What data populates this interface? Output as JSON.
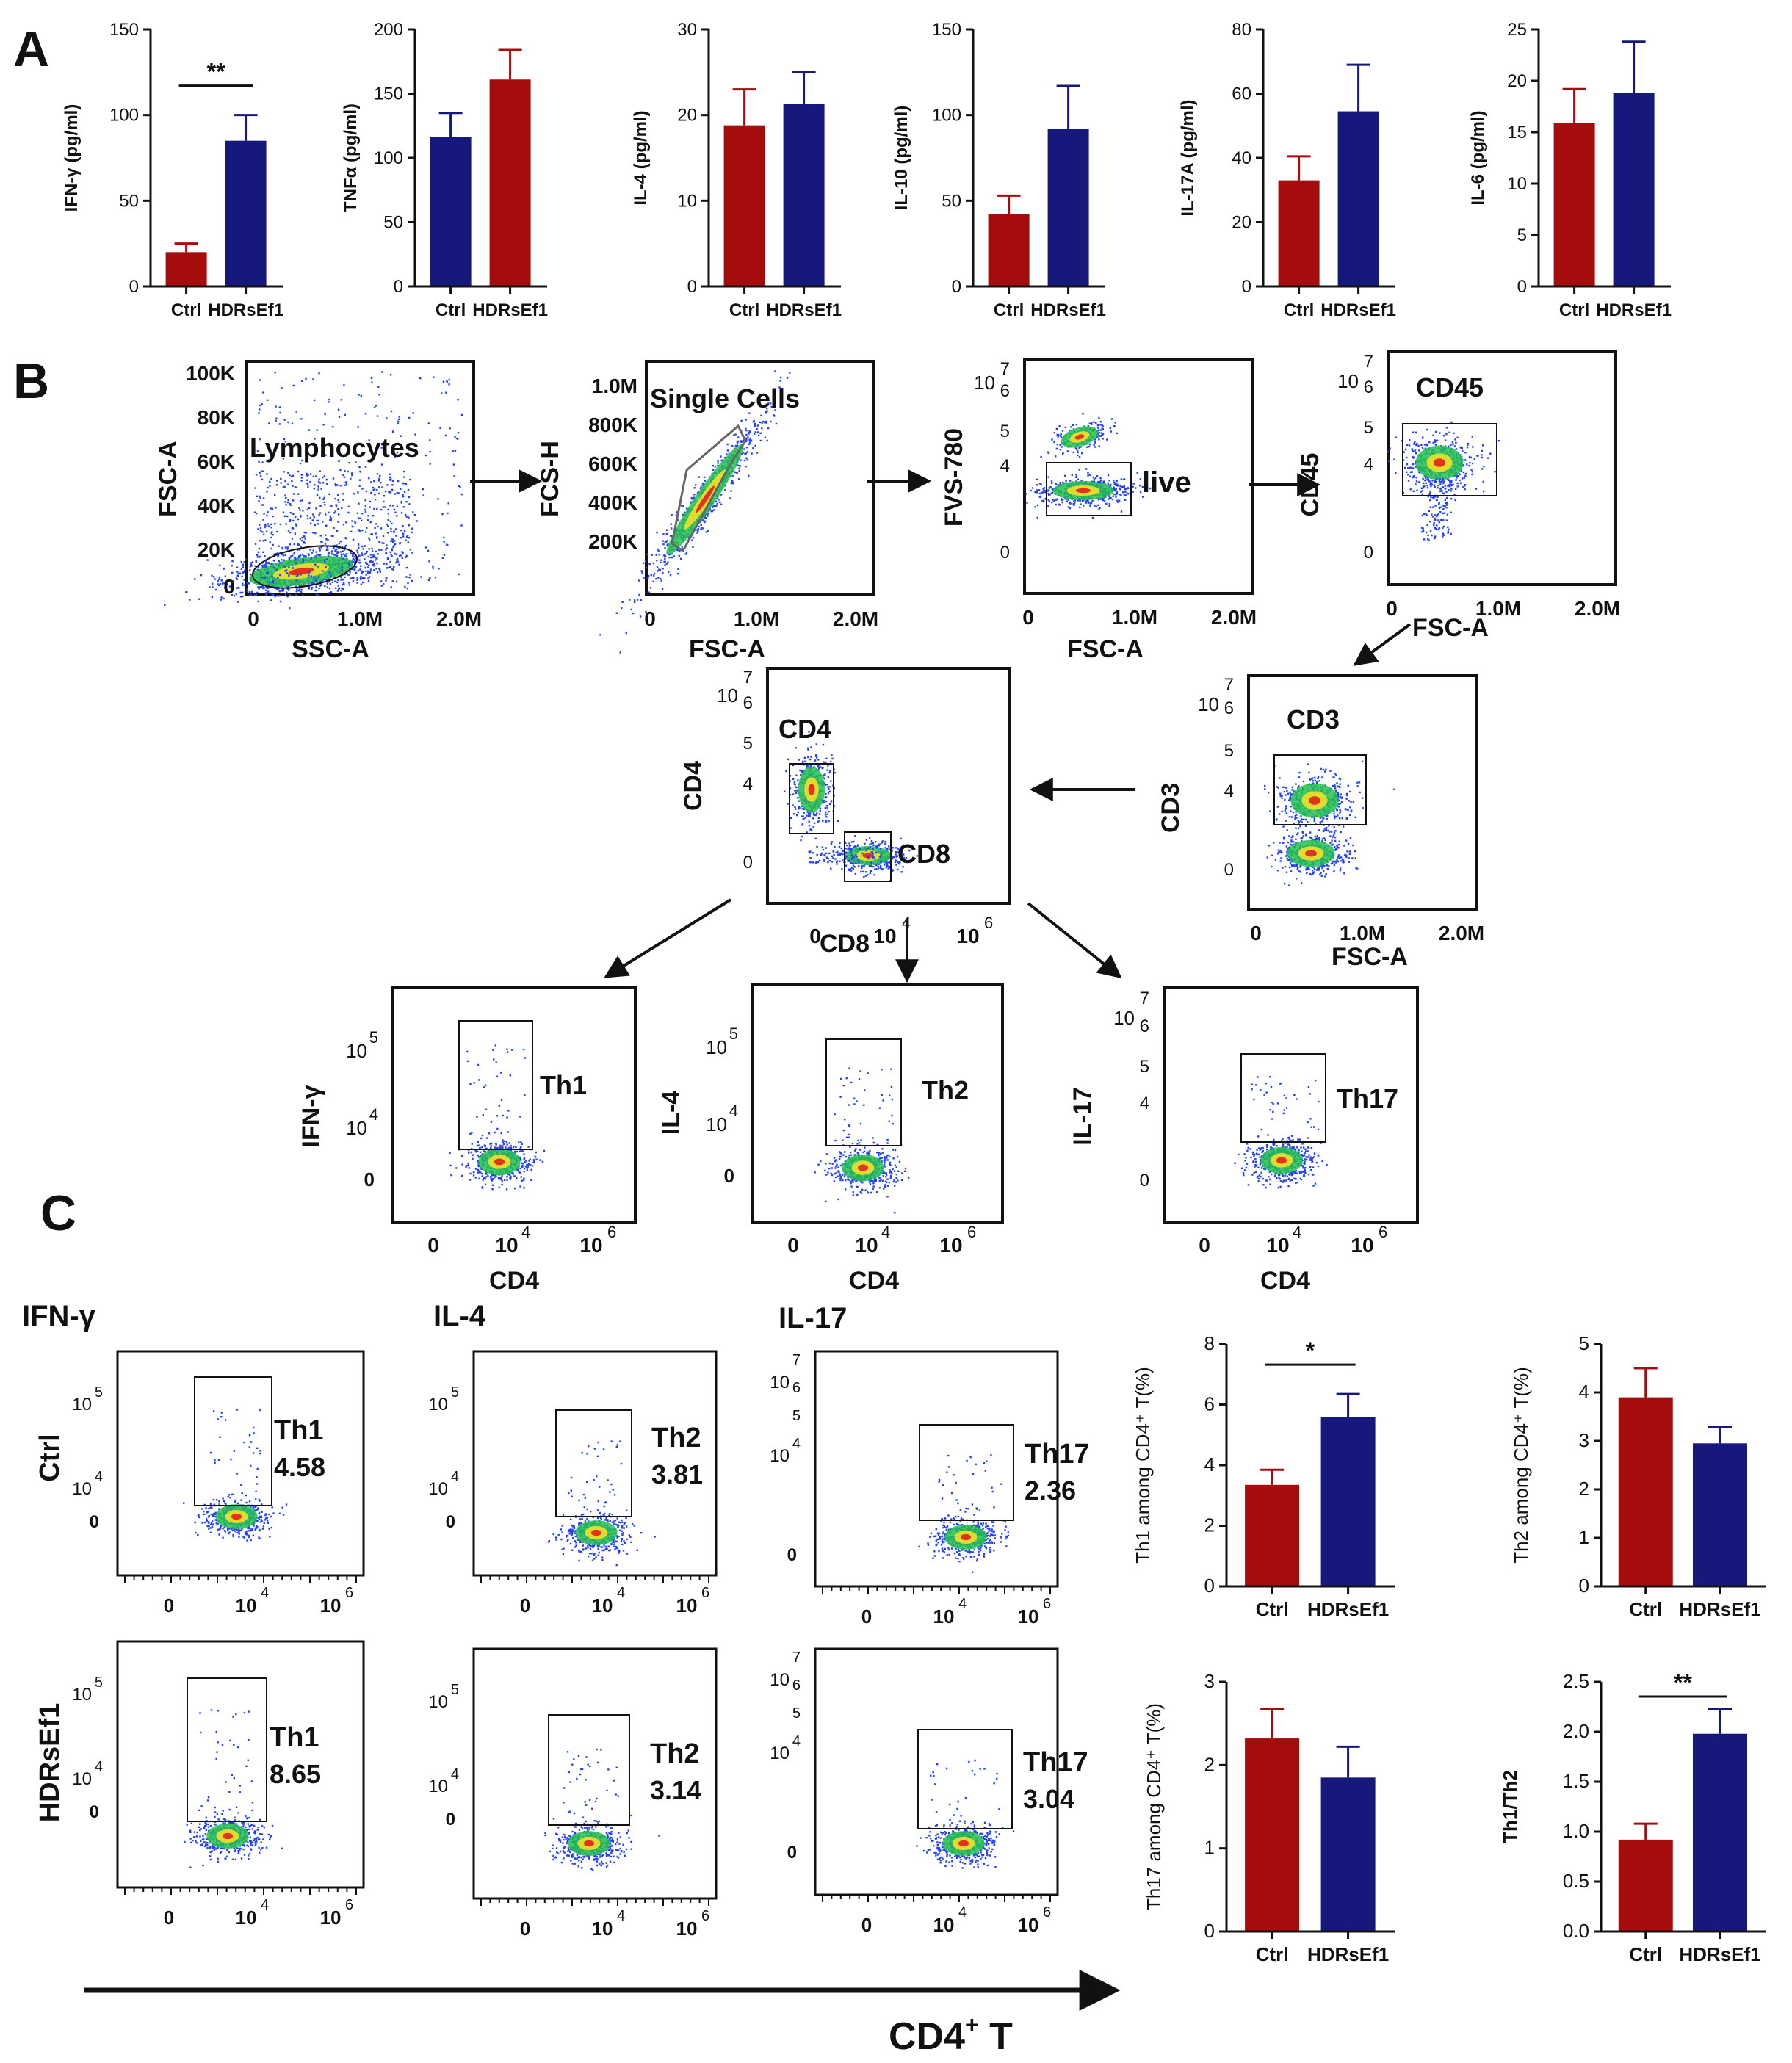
{
  "figure": {
    "panel_labels": [
      "A",
      "B",
      "C"
    ],
    "colors": {
      "ctrl": "#a50d0d",
      "treat": "#17187c",
      "axis": "#111111"
    },
    "c_column_headers": [
      "IFN-γ",
      "IL-4",
      "IL-17"
    ],
    "c_row_labels": [
      "Ctrl",
      "HDRsEf1"
    ],
    "big_axis_label": "CD4",
    "big_axis_sup": "+",
    "big_axis_suffix": " T"
  },
  "gating": {
    "plots": [
      {
        "id": "lymph",
        "xlabel": "SSC-A",
        "ylabel": "FSC-A",
        "gate_label": "Lymphocytes",
        "xticks": [
          "0",
          "1.0M",
          "2.0M"
        ],
        "yticks": [
          "100K",
          "80K",
          "60K",
          "40K",
          "20K",
          "0"
        ]
      },
      {
        "id": "single",
        "xlabel": "FSC-A",
        "ylabel": "FCS-H",
        "gate_label": "Single Cells",
        "xticks": [
          "0",
          "1.0M",
          "2.0M"
        ],
        "yticks": [
          "1.0M",
          "800K",
          "600K",
          "400K",
          "200K"
        ]
      },
      {
        "id": "live",
        "xlabel": "FSC-A",
        "ylabel": "FVS-780",
        "gate_label": "live",
        "xticks": [
          "0",
          "1.0M",
          "2.0M"
        ],
        "yticks": [
          "10",
          "7",
          "6",
          "5",
          "4",
          "0"
        ]
      },
      {
        "id": "cd45",
        "xlabel": "FSC-A",
        "ylabel": "CD45",
        "gate_label": "CD45",
        "xticks": [
          "0",
          "1.0M",
          "2.0M"
        ],
        "yticks": [
          "10",
          "7",
          "6",
          "5",
          "4",
          "0"
        ]
      },
      {
        "id": "cd3",
        "xlabel": "FSC-A",
        "ylabel": "CD3",
        "gate_label": "CD3",
        "xticks": [
          "0",
          "1.0M",
          "2.0M"
        ],
        "yticks": [
          "10",
          "7",
          "6",
          "5",
          "4",
          "0"
        ]
      },
      {
        "id": "cd4",
        "xlabel": "CD8",
        "ylabel": "CD4",
        "gate_label": "CD4",
        "gate_label2": "CD8",
        "xticks": [
          "0",
          "10",
          "4",
          "10",
          "6"
        ],
        "yticks": [
          "10",
          "7",
          "6",
          "5",
          "4",
          "0"
        ]
      },
      {
        "id": "th1",
        "xlabel": "CD4",
        "ylabel": "IFN-γ",
        "gate_label": "Th1",
        "xticks": [
          "0",
          "10",
          "4",
          "10",
          "6"
        ],
        "yticks": [
          "10",
          "5",
          "4",
          "0"
        ]
      },
      {
        "id": "th2",
        "xlabel": "CD4",
        "ylabel": "IL-4",
        "gate_label": "Th2",
        "xticks": [
          "0",
          "10",
          "4",
          "10",
          "6"
        ],
        "yticks": [
          "10",
          "5",
          "4",
          "0"
        ]
      },
      {
        "id": "th17",
        "xlabel": "CD4",
        "ylabel": "IL-17",
        "gate_label": "Th17",
        "xticks": [
          "0",
          "10",
          "4",
          "10",
          "6"
        ],
        "yticks": [
          "10",
          "7",
          "6",
          "5",
          "4",
          "0"
        ]
      }
    ]
  },
  "c_flow": {
    "plots": [
      {
        "id": "ctrl-th1",
        "label": "Th1",
        "value": "4.58"
      },
      {
        "id": "ctrl-th2",
        "label": "Th2",
        "value": "3.81"
      },
      {
        "id": "ctrl-th17",
        "label": "Th17",
        "value": "2.36"
      },
      {
        "id": "hdr-th1",
        "label": "Th1",
        "value": "8.65"
      },
      {
        "id": "hdr-th2",
        "label": "Th2",
        "value": "3.14"
      },
      {
        "id": "hdr-th17",
        "label": "Th17",
        "value": "3.04"
      }
    ]
  },
  "chart_data": [
    {
      "type": "bar",
      "panel": "A",
      "ylabel": "IFN-γ (pg/ml)",
      "categories": [
        "Ctrl",
        "HDRsEf1"
      ],
      "values": [
        20,
        85
      ],
      "errors": [
        5,
        15
      ],
      "ylim": [
        0,
        150
      ],
      "yticks": [
        0,
        50,
        100,
        150
      ],
      "colors": [
        "#a50d0d",
        "#17187c"
      ],
      "significance": "**"
    },
    {
      "type": "bar",
      "panel": "A",
      "ylabel": "TNFα (pg/ml)",
      "categories": [
        "Ctrl",
        "HDRsEf1"
      ],
      "values": [
        116,
        161
      ],
      "errors": [
        19,
        23
      ],
      "ylim": [
        0,
        200
      ],
      "yticks": [
        0,
        50,
        100,
        150,
        200
      ],
      "colors": [
        "#17187c",
        "#a50d0d"
      ]
    },
    {
      "type": "bar",
      "panel": "A",
      "ylabel": "IL-4 (pg/ml)",
      "categories": [
        "Ctrl",
        "HDRsEf1"
      ],
      "values": [
        18.8,
        21.3
      ],
      "errors": [
        4.2,
        3.7
      ],
      "ylim": [
        0,
        30
      ],
      "yticks": [
        0,
        10,
        20,
        30
      ],
      "colors": [
        "#a50d0d",
        "#17187c"
      ]
    },
    {
      "type": "bar",
      "panel": "A",
      "ylabel": "IL-10 (pg/ml)",
      "categories": [
        "Ctrl",
        "HDRsEf1"
      ],
      "values": [
        42,
        92
      ],
      "errors": [
        11,
        25
      ],
      "ylim": [
        0,
        150
      ],
      "yticks": [
        0,
        50,
        100,
        150
      ],
      "colors": [
        "#a50d0d",
        "#17187c"
      ]
    },
    {
      "type": "bar",
      "panel": "A",
      "ylabel": "IL-17A (pg/ml)",
      "categories": [
        "Ctrl",
        "HDRsEf1"
      ],
      "values": [
        33,
        54.5
      ],
      "errors": [
        7.5,
        14.5
      ],
      "ylim": [
        0,
        80
      ],
      "yticks": [
        0,
        20,
        40,
        60,
        80
      ],
      "colors": [
        "#a50d0d",
        "#17187c"
      ]
    },
    {
      "type": "bar",
      "panel": "A",
      "ylabel": "IL-6 (pg/ml)",
      "categories": [
        "Ctrl",
        "HDRsEf1"
      ],
      "values": [
        15.9,
        18.8
      ],
      "errors": [
        3.3,
        5.0
      ],
      "ylim": [
        0,
        25
      ],
      "yticks": [
        0,
        5,
        10,
        15,
        20,
        25
      ],
      "colors": [
        "#a50d0d",
        "#17187c"
      ]
    },
    {
      "type": "bar",
      "panel": "C",
      "ylabel": "Th1 among CD4⁺ T(%)",
      "categories": [
        "Ctrl",
        "HDRsEf1"
      ],
      "values": [
        3.35,
        5.6
      ],
      "errors": [
        0.5,
        0.75
      ],
      "ylim": [
        0,
        8
      ],
      "yticks": [
        0,
        2,
        4,
        6,
        8
      ],
      "colors": [
        "#a50d0d",
        "#17187c"
      ],
      "significance": "*"
    },
    {
      "type": "bar",
      "panel": "C",
      "ylabel": "Th2 among CD4⁺ T(%)",
      "categories": [
        "Ctrl",
        "HDRsEf1"
      ],
      "values": [
        3.9,
        2.95
      ],
      "errors": [
        0.6,
        0.33
      ],
      "ylim": [
        0,
        5
      ],
      "yticks": [
        0,
        1,
        2,
        3,
        4,
        5
      ],
      "colors": [
        "#a50d0d",
        "#17187c"
      ]
    },
    {
      "type": "bar",
      "panel": "C",
      "ylabel": "Th17 among CD4⁺ T(%)",
      "categories": [
        "Ctrl",
        "HDRsEf1"
      ],
      "values": [
        2.32,
        1.85
      ],
      "errors": [
        0.35,
        0.37
      ],
      "ylim": [
        0,
        3
      ],
      "yticks": [
        0,
        1,
        2,
        3
      ],
      "colors": [
        "#a50d0d",
        "#17187c"
      ]
    },
    {
      "type": "bar",
      "panel": "C",
      "ylabel": "Th1/Th2",
      "categories": [
        "Ctrl",
        "HDRsEf1"
      ],
      "values": [
        0.92,
        1.98
      ],
      "errors": [
        0.16,
        0.25
      ],
      "ylim": [
        0,
        2.5
      ],
      "yticks": [
        0.0,
        0.5,
        1.0,
        1.5,
        2.0,
        2.5
      ],
      "tickfmt": 1,
      "colors": [
        "#a50d0d",
        "#17187c"
      ],
      "significance": "**"
    }
  ]
}
